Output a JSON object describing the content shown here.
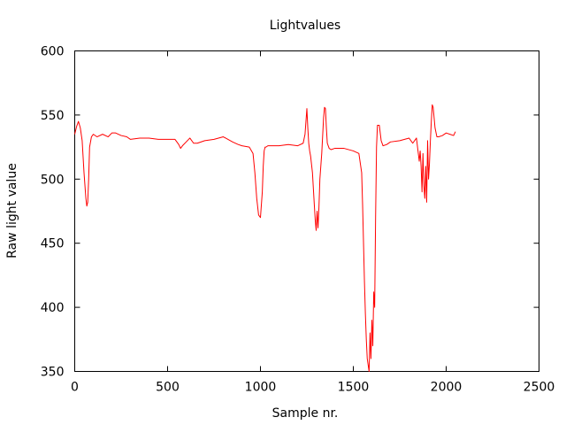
{
  "chart_data": {
    "type": "line",
    "title": "Lightvalues",
    "xlabel": "Sample nr.",
    "ylabel": "Raw light value",
    "xlim": [
      0,
      2500
    ],
    "ylim": [
      350,
      600
    ],
    "xticks": [
      "0",
      "500",
      "1000",
      "1500",
      "2000",
      "2500"
    ],
    "yticks": [
      "350",
      "400",
      "450",
      "500",
      "550",
      "600"
    ],
    "grid": false,
    "legend": "none",
    "series": [
      {
        "color": "#ff0000",
        "x": [
          0,
          10,
          20,
          30,
          40,
          50,
          60,
          65,
          70,
          75,
          80,
          90,
          100,
          120,
          150,
          180,
          200,
          220,
          250,
          280,
          300,
          350,
          400,
          450,
          500,
          540,
          560,
          570,
          580,
          600,
          620,
          640,
          660,
          700,
          750,
          800,
          850,
          880,
          900,
          940,
          960,
          970,
          980,
          990,
          1000,
          1010,
          1015,
          1020,
          1025,
          1030,
          1040,
          1060,
          1100,
          1150,
          1200,
          1230,
          1240,
          1245,
          1250,
          1255,
          1260,
          1265,
          1270,
          1280,
          1290,
          1295,
          1300,
          1305,
          1310,
          1315,
          1320,
          1330,
          1340,
          1345,
          1350,
          1355,
          1360,
          1370,
          1380,
          1400,
          1450,
          1500,
          1530,
          1545,
          1550,
          1555,
          1560,
          1565,
          1570,
          1575,
          1580,
          1585,
          1590,
          1595,
          1600,
          1605,
          1610,
          1615,
          1620,
          1625,
          1630,
          1640,
          1650,
          1660,
          1680,
          1700,
          1750,
          1800,
          1820,
          1840,
          1850,
          1855,
          1860,
          1865,
          1870,
          1875,
          1880,
          1885,
          1890,
          1895,
          1900,
          1905,
          1910,
          1915,
          1920,
          1925,
          1930,
          1940,
          1950,
          1960,
          1980,
          2000,
          2020,
          2040,
          2050
        ],
        "y": [
          535,
          541,
          545,
          540,
          530,
          505,
          485,
          479,
          482,
          500,
          525,
          533,
          535,
          533,
          535,
          533,
          536,
          536,
          534,
          533,
          531,
          532,
          532,
          531,
          531,
          531,
          527,
          524,
          526,
          529,
          532,
          528,
          528,
          530,
          531,
          533,
          529,
          527,
          526,
          525,
          520,
          505,
          485,
          472,
          470,
          490,
          510,
          522,
          525,
          525,
          526,
          526,
          526,
          527,
          526,
          528,
          535,
          545,
          555,
          540,
          528,
          522,
          518,
          505,
          480,
          468,
          460,
          475,
          462,
          478,
          500,
          520,
          548,
          556,
          555,
          540,
          528,
          524,
          523,
          524,
          524,
          522,
          520,
          505,
          480,
          450,
          420,
          395,
          375,
          360,
          355,
          350,
          380,
          360,
          390,
          370,
          412,
          400,
          470,
          525,
          542,
          542,
          530,
          526,
          527,
          529,
          530,
          532,
          528,
          532,
          520,
          514,
          522,
          510,
          490,
          520,
          495,
          485,
          510,
          482,
          530,
          500,
          512,
          530,
          545,
          558,
          556,
          540,
          533,
          533,
          534,
          536,
          535,
          534,
          537
        ]
      }
    ]
  }
}
